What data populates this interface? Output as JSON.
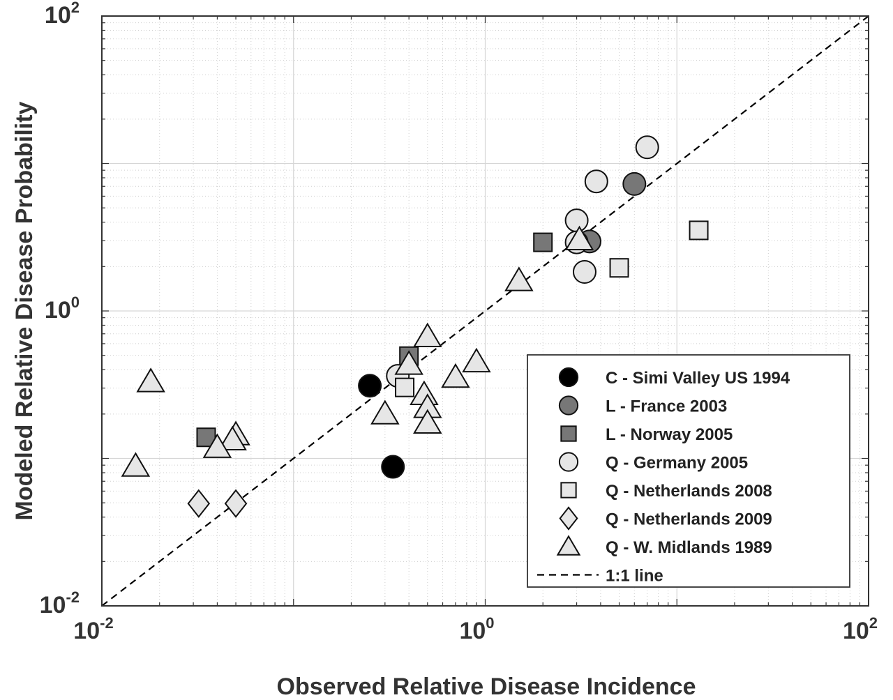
{
  "chart_data": {
    "type": "scatter",
    "xlabel": "Observed Relative Disease Incidence",
    "ylabel": "Modeled Relative Disease Probability",
    "x_scale": "log",
    "y_scale": "log",
    "xlim": [
      0.01,
      100
    ],
    "ylim": [
      0.01,
      100
    ],
    "x_ticks": [
      {
        "base": "10",
        "exp": "-2"
      },
      {
        "base": "10",
        "exp": "0"
      },
      {
        "base": "10",
        "exp": "2"
      }
    ],
    "y_ticks": [
      {
        "base": "10",
        "exp": "-2"
      },
      {
        "base": "10",
        "exp": "0"
      },
      {
        "base": "10",
        "exp": "2"
      }
    ],
    "grid": true,
    "minor_grid": true,
    "legend_position": "lower-right",
    "series": [
      {
        "name": "C - Simi Valley US 1994",
        "marker": "circle",
        "color": "#000000",
        "points": [
          {
            "x": 0.25,
            "y": 0.311
          },
          {
            "x": 0.33,
            "y": 0.0877
          }
        ]
      },
      {
        "name": "L - France 2003",
        "marker": "circle",
        "color": "#777777",
        "points": [
          {
            "x": 6.0,
            "y": 7.26
          },
          {
            "x": 3.5,
            "y": 2.96
          }
        ]
      },
      {
        "name": "L - Norway 2005",
        "marker": "square",
        "color": "#777777",
        "points": [
          {
            "x": 2.0,
            "y": 2.92
          },
          {
            "x": 0.035,
            "y": 0.139
          },
          {
            "x": 0.4,
            "y": 0.494
          }
        ]
      },
      {
        "name": "Q - Germany 2005",
        "marker": "circle",
        "color": "#e6e6e6",
        "points": [
          {
            "x": 7.0,
            "y": 12.88
          },
          {
            "x": 3.8,
            "y": 7.56
          },
          {
            "x": 3.0,
            "y": 4.11
          },
          {
            "x": 3.0,
            "y": 2.92
          },
          {
            "x": 3.3,
            "y": 1.84
          },
          {
            "x": 0.35,
            "y": 0.363
          }
        ]
      },
      {
        "name": "Q - Netherlands 2008",
        "marker": "square",
        "color": "#e6e6e6",
        "points": [
          {
            "x": 13.0,
            "y": 3.52
          },
          {
            "x": 5.0,
            "y": 1.96
          },
          {
            "x": 0.38,
            "y": 0.303
          }
        ]
      },
      {
        "name": "Q - Netherlands 2009",
        "marker": "diamond",
        "color": "#e6e6e6",
        "points": [
          {
            "x": 0.032,
            "y": 0.0494
          },
          {
            "x": 0.05,
            "y": 0.0494
          }
        ]
      },
      {
        "name": "Q - W. Midlands 1989",
        "marker": "triangle",
        "color": "#e6e6e6",
        "points": [
          {
            "x": 0.5,
            "y": 0.671
          },
          {
            "x": 0.9,
            "y": 0.453
          },
          {
            "x": 0.7,
            "y": 0.356
          },
          {
            "x": 0.018,
            "y": 0.332
          },
          {
            "x": 0.4,
            "y": 0.436
          },
          {
            "x": 0.48,
            "y": 0.272
          },
          {
            "x": 0.5,
            "y": 0.222
          },
          {
            "x": 0.5,
            "y": 0.174
          },
          {
            "x": 0.3,
            "y": 0.201
          },
          {
            "x": 0.05,
            "y": 0.145
          },
          {
            "x": 0.048,
            "y": 0.134
          },
          {
            "x": 0.04,
            "y": 0.119
          },
          {
            "x": 0.015,
            "y": 0.0889
          },
          {
            "x": 1.5,
            "y": 1.61
          },
          {
            "x": 3.1,
            "y": 3.05
          }
        ]
      }
    ],
    "reference_line": {
      "name": "1:1 line",
      "style": "dashed",
      "color": "#000000",
      "x": [
        0.01,
        100
      ],
      "y": [
        0.01,
        100
      ]
    }
  }
}
